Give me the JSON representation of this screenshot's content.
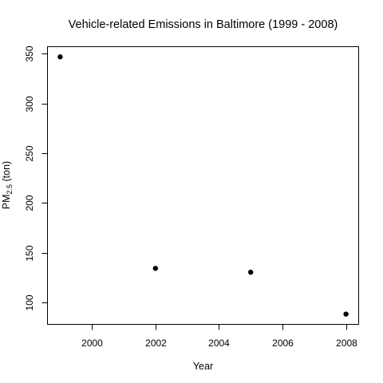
{
  "chart_data": {
    "type": "scatter",
    "title": "Vehicle-related Emissions in Baltimore (1999 - 2008)",
    "xlabel": "Year",
    "ylabel": {
      "base": "PM",
      "subscript": "2.5",
      "suffix": " (ton)"
    },
    "x": [
      1999,
      2002,
      2005,
      2008
    ],
    "y": [
      346.8,
      134.3,
      130.4,
      88.3
    ],
    "xlim": [
      1998.6,
      2008.4
    ],
    "ylim": [
      78,
      357
    ],
    "xticks": [
      2000,
      2002,
      2004,
      2006,
      2008
    ],
    "yticks": [
      100,
      150,
      200,
      250,
      300,
      350
    ],
    "grid": false,
    "marker": "filled-circle",
    "marker_color": "#000000"
  }
}
